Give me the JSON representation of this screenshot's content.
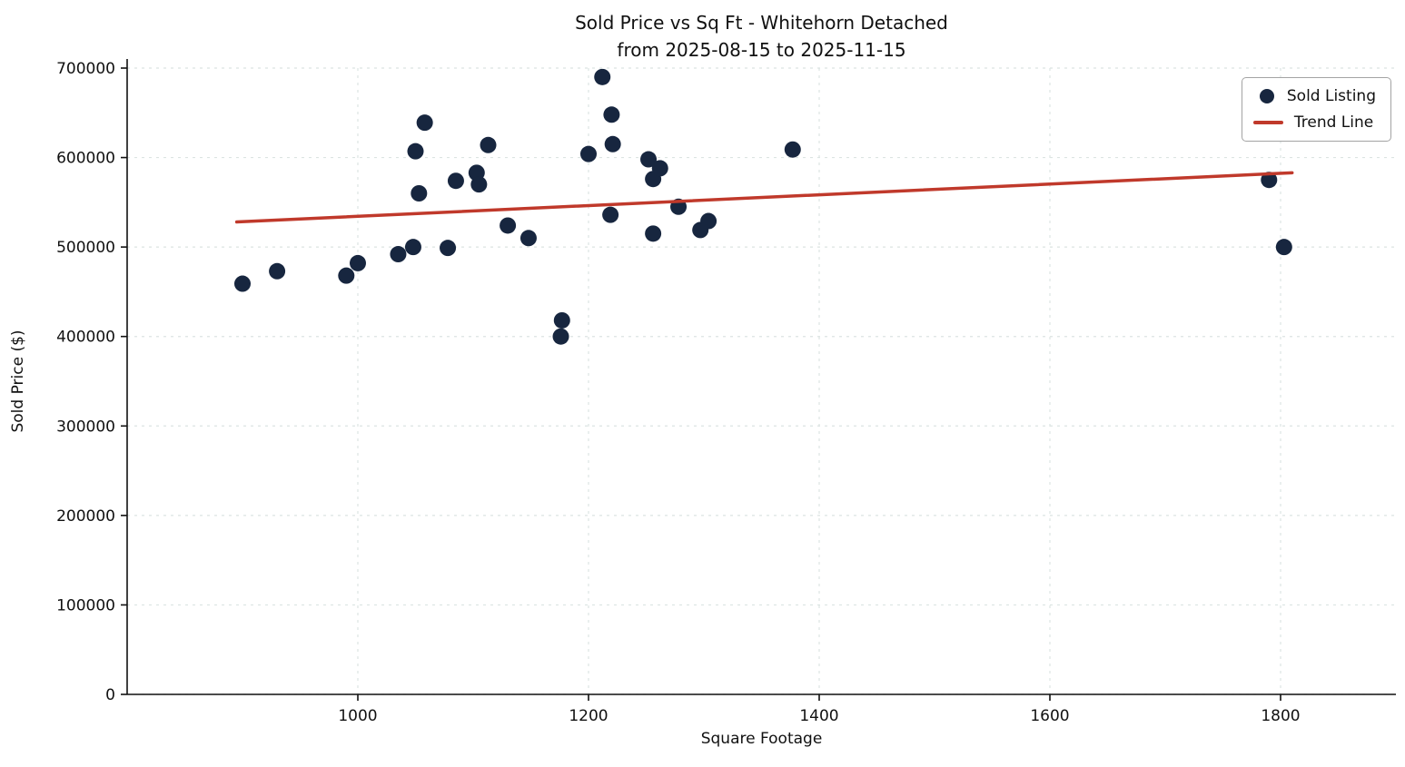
{
  "chart_data": {
    "type": "scatter",
    "title": "Sold Price vs Sq Ft - Whitehorn Detached",
    "subtitle": "from 2025-08-15 to 2025-11-15",
    "xlabel": "Square Footage",
    "ylabel": "Sold Price ($)",
    "xlim": [
      800,
      1900
    ],
    "ylim": [
      0,
      700000
    ],
    "xticks": [
      1000,
      1200,
      1400,
      1600,
      1800
    ],
    "yticks": [
      0,
      100000,
      200000,
      300000,
      400000,
      500000,
      600000,
      700000
    ],
    "grid": true,
    "grid_style": "dashed",
    "legend_position": "upper right",
    "series": [
      {
        "name": "Sold Listing",
        "type": "scatter",
        "points": [
          [
            900,
            459000
          ],
          [
            930,
            473000
          ],
          [
            990,
            468000
          ],
          [
            1000,
            482000
          ],
          [
            1035,
            492000
          ],
          [
            1048,
            500000
          ],
          [
            1050,
            607000
          ],
          [
            1053,
            560000
          ],
          [
            1058,
            639000
          ],
          [
            1078,
            499000
          ],
          [
            1085,
            574000
          ],
          [
            1103,
            583000
          ],
          [
            1105,
            570000
          ],
          [
            1113,
            614000
          ],
          [
            1130,
            524000
          ],
          [
            1148,
            510000
          ],
          [
            1176,
            400000
          ],
          [
            1177,
            418000
          ],
          [
            1200,
            604000
          ],
          [
            1212,
            690000
          ],
          [
            1220,
            648000
          ],
          [
            1221,
            615000
          ],
          [
            1219,
            536000
          ],
          [
            1252,
            598000
          ],
          [
            1256,
            576000
          ],
          [
            1262,
            588000
          ],
          [
            1256,
            515000
          ],
          [
            1278,
            545000
          ],
          [
            1297,
            519000
          ],
          [
            1304,
            529000
          ],
          [
            1377,
            609000
          ],
          [
            1790,
            575000
          ],
          [
            1803,
            500000
          ]
        ]
      },
      {
        "name": "Trend Line",
        "type": "line",
        "points": [
          [
            895,
            528000
          ],
          [
            1810,
            583000
          ]
        ]
      }
    ],
    "colors": {
      "point": "#17263f",
      "trend": "#c0392b",
      "grid": "#dce4e2",
      "axis": "#111111"
    }
  }
}
